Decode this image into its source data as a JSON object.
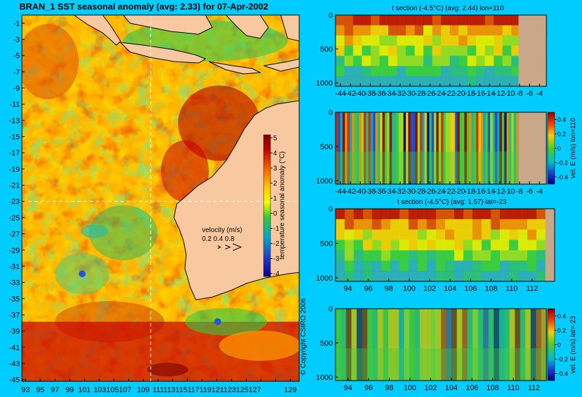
{
  "map": {
    "title": "BRAN_1 SST seasonal anomaly (avg: 2.33) for 07-Apr-2002",
    "lat_ticks": [
      "-1",
      "-3",
      "-5",
      "-7",
      "-9",
      "-11",
      "-13",
      "-15",
      "-17",
      "-19",
      "-21",
      "-23",
      "-25",
      "-27",
      "-29",
      "-31",
      "-33",
      "-35",
      "-37",
      "-39",
      "-41",
      "-43",
      "-45"
    ],
    "lon_ticks": [
      "93",
      "95",
      "97",
      "99",
      "101",
      "103",
      "105",
      "107",
      "109",
      "111",
      "113",
      "115",
      "117",
      "119",
      "121",
      "123",
      "125",
      "127",
      "129"
    ],
    "lon_ticks_printed": [
      "93",
      "95",
      "97",
      "99",
      "101",
      "103105107",
      "109",
      "111113115117119121123125127",
      "129"
    ],
    "colorbar": {
      "label": "temperature seasonal anomaly (°C)",
      "ticks": [
        "5",
        "4",
        "3",
        "2",
        "1",
        "0",
        "-1",
        "-2",
        "-3",
        "-4"
      ]
    },
    "velocity": {
      "title": "velocity (m/s)",
      "values": "0.2 0.4 0.8"
    },
    "crosshair": {
      "lon": 110,
      "lat": -23
    },
    "colors": {
      "land": "#f8c8a0",
      "ocean_warm": "#ff9a00",
      "ocean_hot": "#c80000",
      "ocean_neutral": "#ffee00",
      "ocean_cool": "#22cc55",
      "ocean_cold": "#2255dd"
    }
  },
  "panels": [
    {
      "id": "t-section-lon",
      "title": "t section (-4.5°C) (avg: 2.44) lon=110",
      "y_ticks": [
        "0",
        "500",
        "1000"
      ],
      "x_ticks": [
        "-44",
        "-42",
        "-40",
        "-38",
        "-36",
        "-34",
        "-32",
        "-30",
        "-28",
        "-26",
        "-24",
        "-22",
        "-20",
        "-18",
        "-16",
        "-14",
        "-12",
        "-10",
        "-8",
        "-6",
        "-4"
      ],
      "x_ticks_printed": [
        "-44",
        "-42",
        "-40",
        "-38",
        "-36",
        "-34",
        "-32",
        "-30",
        "-28",
        "-26",
        "-24",
        "-22",
        "-20",
        "-18",
        "-16",
        "-14",
        "-12",
        "-10",
        "-8",
        "-6",
        "-4"
      ]
    },
    {
      "id": "vel-e-lon",
      "title": "",
      "y_ticks": [
        "0",
        "500",
        "1000"
      ],
      "x_ticks": [
        "-44",
        "-42",
        "-40",
        "-38",
        "-36",
        "-34",
        "-32",
        "-30",
        "-28",
        "-26",
        "-24",
        "-22",
        "-20",
        "-18",
        "-16",
        "-14",
        "-12",
        "-10",
        "-8",
        "-6",
        "-4"
      ],
      "x_ticks_printed": [
        "-44",
        "-42",
        "-40",
        "-38",
        "-36",
        "-34",
        "-32",
        "-30",
        "-28",
        "-26",
        "-24",
        "-22",
        "-20",
        "-18",
        "-16",
        "-14",
        "-12",
        "-10",
        "-8",
        "-6",
        "-4"
      ],
      "colorbar": {
        "label": "vel. E (m/s) lon=110",
        "ticks": [
          "0.4",
          "0.2",
          "0",
          "-0.2",
          "-0.4"
        ]
      }
    },
    {
      "id": "t-section-lat",
      "title": "t section (-4.5°C) (avg: 1.57) lat=-23",
      "y_ticks": [
        "0",
        "500",
        "1000"
      ],
      "x_ticks": [
        "94",
        "96",
        "98",
        "100",
        "102",
        "104",
        "106",
        "108",
        "110",
        "112"
      ]
    },
    {
      "id": "vel-e-lat",
      "title": "",
      "y_ticks": [
        "0",
        "500",
        "1000"
      ],
      "x_ticks": [
        "94",
        "96",
        "98",
        "100",
        "102",
        "104",
        "106",
        "108",
        "110",
        "112"
      ],
      "colorbar": {
        "label": "vel. E (m/s) lat=-23",
        "ticks": [
          "0.4",
          "0.2",
          "0",
          "-0.2",
          "-0.4"
        ]
      }
    }
  ],
  "copyright": "© Copyright CSIRO 2006"
}
